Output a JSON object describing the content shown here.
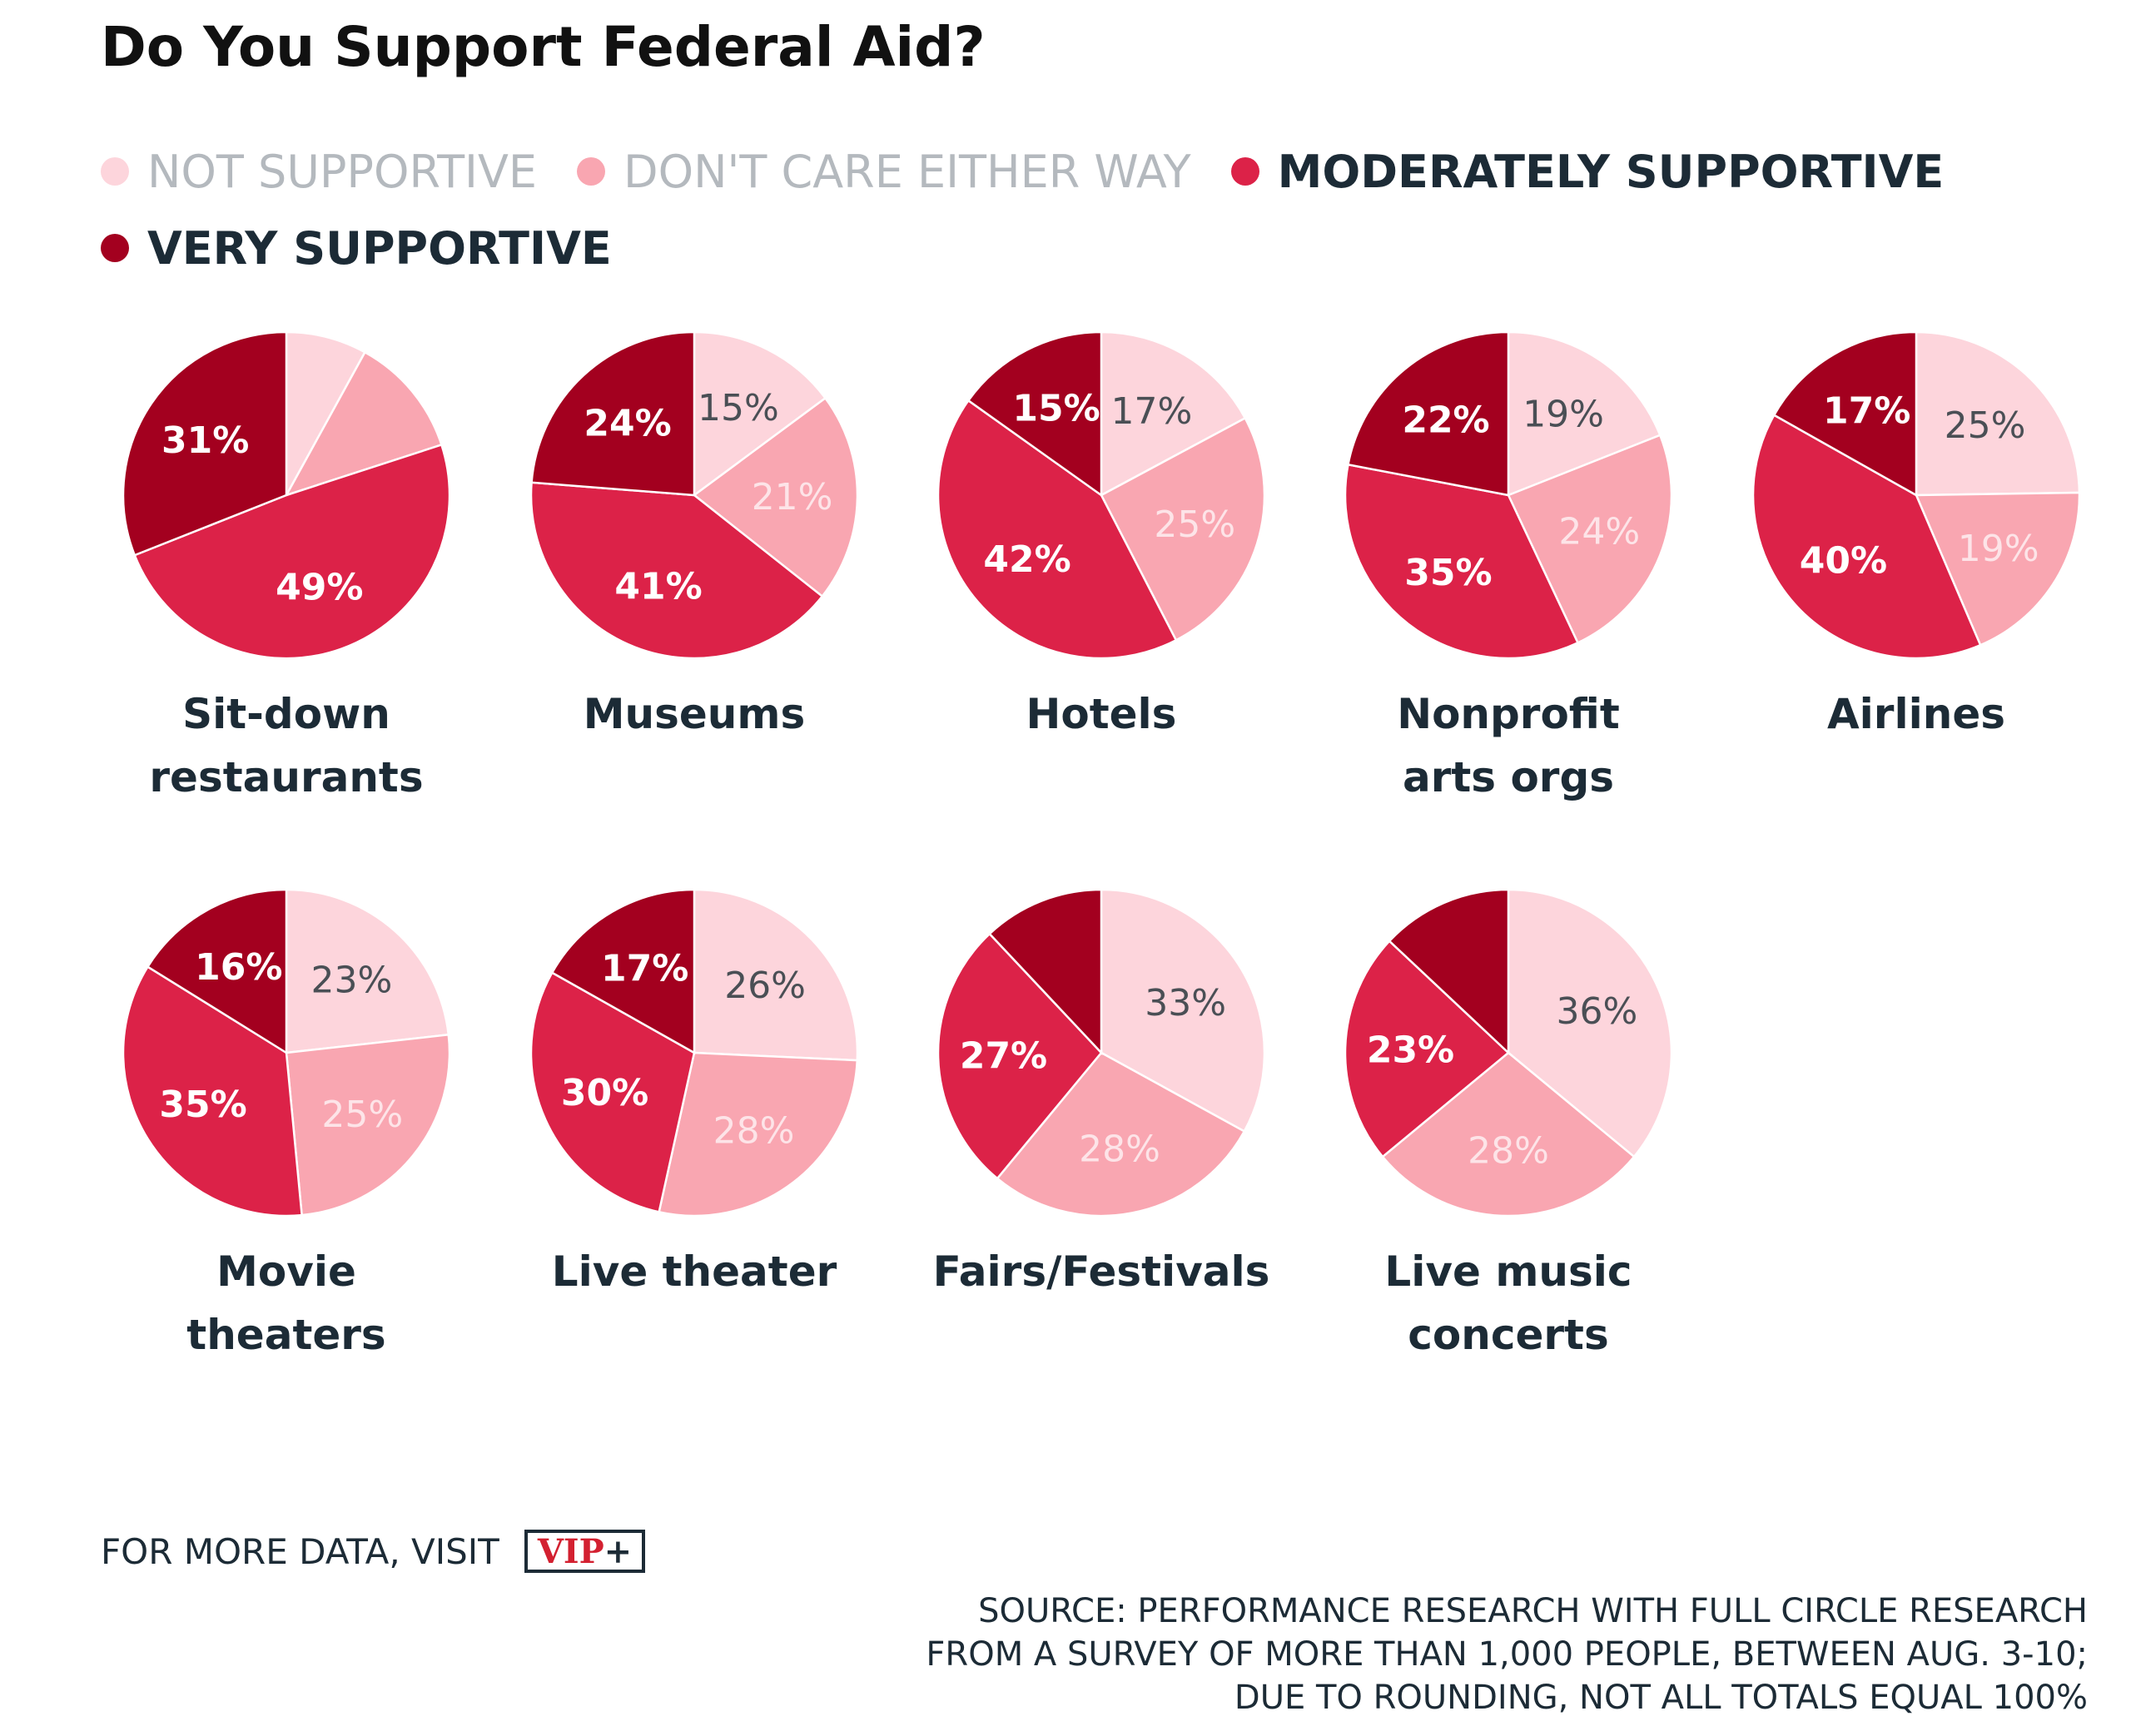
{
  "title": "Do You Support Federal Aid?",
  "legend": [
    {
      "label": "NOT SUPPORTIVE",
      "color": "#fdd5dc",
      "style": "light"
    },
    {
      "label": "DON'T CARE EITHER WAY",
      "color": "#f9a6b1",
      "style": "light"
    },
    {
      "label": "MODERATELY SUPPORTIVE",
      "color": "#dc2248",
      "style": "dark"
    },
    {
      "label": "VERY SUPPORTIVE",
      "color": "#a3001f",
      "style": "dark"
    }
  ],
  "footer": {
    "more_data": "FOR MORE DATA, VISIT",
    "logo_text": "VIP",
    "logo_plus": "+",
    "source_lines": [
      "SOURCE: PERFORMANCE RESEARCH WITH FULL CIRCLE RESEARCH",
      "FROM A SURVEY OF MORE THAN 1,000 PEOPLE, BETWEEN AUG. 3-10;",
      "DUE TO ROUNDING, NOT ALL TOTALS EQUAL 100%"
    ]
  },
  "chart_data": [
    {
      "type": "pie",
      "title": "Sit-down restaurants",
      "title_lines": [
        "Sit-down",
        "restaurants"
      ],
      "series": [
        "NOT SUPPORTIVE",
        "DON'T CARE EITHER WAY",
        "MODERATELY SUPPORTIVE",
        "VERY SUPPORTIVE"
      ],
      "values": [
        8,
        12,
        49,
        31
      ],
      "labels": [
        "",
        "",
        "49%",
        "31%"
      ]
    },
    {
      "type": "pie",
      "title": "Museums",
      "title_lines": [
        "Museums"
      ],
      "series": [
        "NOT SUPPORTIVE",
        "DON'T CARE EITHER WAY",
        "MODERATELY SUPPORTIVE",
        "VERY SUPPORTIVE"
      ],
      "values": [
        15,
        21,
        41,
        24
      ],
      "labels": [
        "15%",
        "21%",
        "41%",
        "24%"
      ]
    },
    {
      "type": "pie",
      "title": "Hotels",
      "title_lines": [
        "Hotels"
      ],
      "series": [
        "NOT SUPPORTIVE",
        "DON'T CARE EITHER WAY",
        "MODERATELY SUPPORTIVE",
        "VERY SUPPORTIVE"
      ],
      "values": [
        17,
        25,
        42,
        15
      ],
      "labels": [
        "17%",
        "25%",
        "42%",
        "15%"
      ]
    },
    {
      "type": "pie",
      "title": "Nonprofit arts orgs",
      "title_lines": [
        "Nonprofit",
        "arts orgs"
      ],
      "series": [
        "NOT SUPPORTIVE",
        "DON'T CARE EITHER WAY",
        "MODERATELY SUPPORTIVE",
        "VERY SUPPORTIVE"
      ],
      "values": [
        19,
        24,
        35,
        22
      ],
      "labels": [
        "19%",
        "24%",
        "35%",
        "22%"
      ]
    },
    {
      "type": "pie",
      "title": "Airlines",
      "title_lines": [
        "Airlines"
      ],
      "series": [
        "NOT SUPPORTIVE",
        "DON'T CARE EITHER WAY",
        "MODERATELY SUPPORTIVE",
        "VERY SUPPORTIVE"
      ],
      "values": [
        25,
        19,
        40,
        17
      ],
      "labels": [
        "25%",
        "19%",
        "40%",
        "17%"
      ]
    },
    {
      "type": "pie",
      "title": "Movie theaters",
      "title_lines": [
        "Movie",
        "theaters"
      ],
      "series": [
        "NOT SUPPORTIVE",
        "DON'T CARE EITHER WAY",
        "MODERATELY SUPPORTIVE",
        "VERY SUPPORTIVE"
      ],
      "values": [
        23,
        25,
        35,
        16
      ],
      "labels": [
        "23%",
        "25%",
        "35%",
        "16%"
      ]
    },
    {
      "type": "pie",
      "title": "Live theater",
      "title_lines": [
        "Live theater"
      ],
      "series": [
        "NOT SUPPORTIVE",
        "DON'T CARE EITHER WAY",
        "MODERATELY SUPPORTIVE",
        "VERY SUPPORTIVE"
      ],
      "values": [
        26,
        28,
        30,
        17
      ],
      "labels": [
        "26%",
        "28%",
        "30%",
        "17%"
      ]
    },
    {
      "type": "pie",
      "title": "Fairs/Festivals",
      "title_lines": [
        "Fairs/Festivals"
      ],
      "series": [
        "NOT SUPPORTIVE",
        "DON'T CARE EITHER WAY",
        "MODERATELY SUPPORTIVE",
        "VERY SUPPORTIVE"
      ],
      "values": [
        33,
        28,
        27,
        12
      ],
      "labels": [
        "33%",
        "28%",
        "27%",
        ""
      ]
    },
    {
      "type": "pie",
      "title": "Live music concerts",
      "title_lines": [
        "Live music",
        "concerts"
      ],
      "series": [
        "NOT SUPPORTIVE",
        "DON'T CARE EITHER WAY",
        "MODERATELY SUPPORTIVE",
        "VERY SUPPORTIVE"
      ],
      "values": [
        36,
        28,
        23,
        13
      ],
      "labels": [
        "36%",
        "28%",
        "23%",
        ""
      ]
    }
  ]
}
